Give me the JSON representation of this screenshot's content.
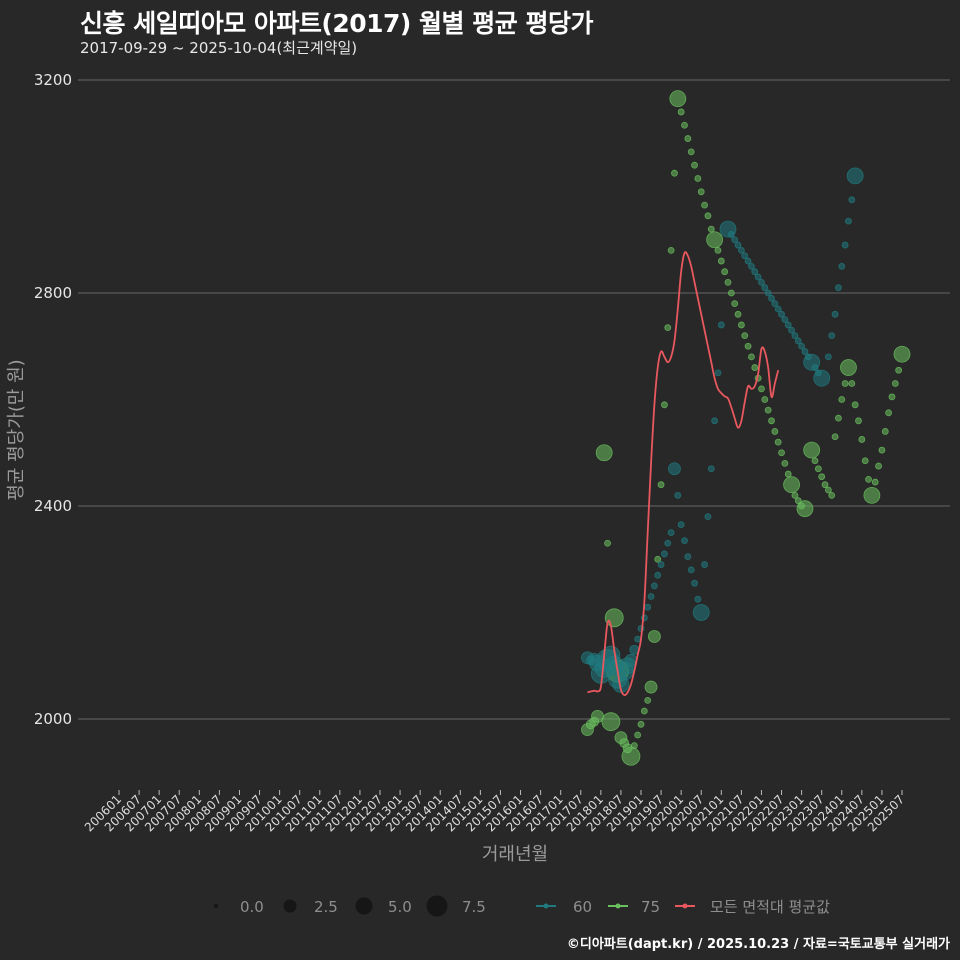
{
  "header": {
    "title": "신흥 세일띠아모 아파트(2017) 월별 평균 평당가",
    "subtitle": "2017-09-29 ~ 2025-10-04(최근계약일)"
  },
  "footer": {
    "credit": "©디아파트(dapt.kr) / 2025.10.23 / 자료=국토교통부 실거래가"
  },
  "colors": {
    "background": "#282828",
    "gridline": "#5a5a5a",
    "area60": "#1f7a80",
    "area75": "#6abf5e",
    "average": "#e8585e"
  },
  "chart_data": {
    "type": "scatter",
    "title": "신흥 세일띠아모 아파트(2017) 월별 평균 평당가",
    "subtitle": "2017-09-29 ~ 2025-10-04(최근계약일)",
    "xlabel": "거래년월",
    "ylabel": "평균 평당가(만 원)",
    "ylim": [
      1860,
      3230
    ],
    "yticks": [
      2000,
      2400,
      2800,
      3200
    ],
    "grid": true,
    "xticks": [
      "200601",
      "200607",
      "200701",
      "200707",
      "200801",
      "200807",
      "200901",
      "200907",
      "201001",
      "201007",
      "201101",
      "201107",
      "201201",
      "201207",
      "201301",
      "201307",
      "201401",
      "201407",
      "201501",
      "201507",
      "201601",
      "201607",
      "201701",
      "201707",
      "201801",
      "201807",
      "201901",
      "201907",
      "202001",
      "202007",
      "202101",
      "202107",
      "202201",
      "202207",
      "202301",
      "202307",
      "202401",
      "202407",
      "202501",
      "202507"
    ],
    "legend": {
      "size_title": "",
      "sizes": [
        {
          "label": "0.0",
          "r": 2
        },
        {
          "label": "2.5",
          "r": 6
        },
        {
          "label": "5.0",
          "r": 8.5
        },
        {
          "label": "7.5",
          "r": 10.5
        }
      ],
      "series": [
        {
          "label": "60",
          "color": "#1f7a80"
        },
        {
          "label": "75",
          "color": "#6abf5e"
        },
        {
          "label": "모든 면적대 평균값",
          "color": "#e8585e"
        }
      ],
      "position": "bottom"
    },
    "series": [
      {
        "name": "60",
        "points": [
          [
            "201709",
            2115,
            3
          ],
          [
            "201710",
            2110,
            2
          ],
          [
            "201711",
            2112,
            3
          ],
          [
            "201712",
            2105,
            4
          ],
          [
            "201801",
            2085,
            6
          ],
          [
            "201802",
            2095,
            5
          ],
          [
            "201803",
            2110,
            7
          ],
          [
            "201804",
            2120,
            5
          ],
          [
            "201805",
            2100,
            6
          ],
          [
            "201806",
            2075,
            5
          ],
          [
            "201807",
            2065,
            4
          ],
          [
            "201808",
            2090,
            5
          ],
          [
            "201809",
            2100,
            4
          ],
          [
            "201810",
            2110,
            3
          ],
          [
            "201811",
            2130,
            2
          ],
          [
            "201812",
            2150,
            1
          ],
          [
            "201901",
            2170,
            1
          ],
          [
            "201902",
            2190,
            1
          ],
          [
            "201903",
            2210,
            1
          ],
          [
            "201904",
            2230,
            1
          ],
          [
            "201905",
            2250,
            1
          ],
          [
            "201906",
            2270,
            1
          ],
          [
            "201907",
            2290,
            1
          ],
          [
            "201908",
            2310,
            1
          ],
          [
            "201909",
            2330,
            1
          ],
          [
            "201910",
            2350,
            1
          ],
          [
            "201911",
            2470,
            3
          ],
          [
            "201912",
            2420,
            1
          ],
          [
            "202001",
            2365,
            1
          ],
          [
            "202002",
            2335,
            1
          ],
          [
            "202003",
            2305,
            1
          ],
          [
            "202004",
            2280,
            1
          ],
          [
            "202005",
            2255,
            1
          ],
          [
            "202006",
            2225,
            1
          ],
          [
            "202007",
            2200,
            4
          ],
          [
            "202008",
            2290,
            1
          ],
          [
            "202009",
            2380,
            1
          ],
          [
            "202010",
            2470,
            1
          ],
          [
            "202011",
            2560,
            1
          ],
          [
            "202012",
            2650,
            1
          ],
          [
            "202101",
            2740,
            1
          ],
          [
            "202103",
            2920,
            4
          ],
          [
            "202104",
            2910,
            1
          ],
          [
            "202105",
            2900,
            1
          ],
          [
            "202106",
            2890,
            1
          ],
          [
            "202107",
            2880,
            1
          ],
          [
            "202108",
            2870,
            1
          ],
          [
            "202109",
            2860,
            1
          ],
          [
            "202110",
            2850,
            1
          ],
          [
            "202111",
            2840,
            1
          ],
          [
            "202112",
            2830,
            1
          ],
          [
            "202201",
            2820,
            1
          ],
          [
            "202202",
            2810,
            1
          ],
          [
            "202203",
            2800,
            1
          ],
          [
            "202204",
            2790,
            1
          ],
          [
            "202205",
            2780,
            1
          ],
          [
            "202206",
            2770,
            1
          ],
          [
            "202207",
            2760,
            1
          ],
          [
            "202208",
            2750,
            1
          ],
          [
            "202209",
            2740,
            1
          ],
          [
            "202210",
            2730,
            1
          ],
          [
            "202211",
            2720,
            1
          ],
          [
            "202212",
            2710,
            1
          ],
          [
            "202301",
            2700,
            1
          ],
          [
            "202302",
            2690,
            1
          ],
          [
            "202303",
            2680,
            1
          ],
          [
            "202304",
            2670,
            4
          ],
          [
            "202305",
            2660,
            1
          ],
          [
            "202306",
            2650,
            1
          ],
          [
            "202307",
            2640,
            4
          ],
          [
            "202309",
            2680,
            1
          ],
          [
            "202310",
            2720,
            1
          ],
          [
            "202311",
            2760,
            1
          ],
          [
            "202312",
            2810,
            1
          ],
          [
            "202401",
            2850,
            1
          ],
          [
            "202402",
            2890,
            1
          ],
          [
            "202403",
            2935,
            1
          ],
          [
            "202404",
            2975,
            1
          ],
          [
            "202405",
            3020,
            4
          ]
        ]
      },
      {
        "name": "75",
        "points": [
          [
            "201709",
            1980,
            3
          ],
          [
            "201710",
            1990,
            2
          ],
          [
            "201711",
            1995,
            2
          ],
          [
            "201712",
            2005,
            3
          ],
          [
            "201802",
            2500,
            4
          ],
          [
            "201803",
            2330,
            1
          ],
          [
            "201804",
            1995,
            5
          ],
          [
            "201805",
            2190,
            5
          ],
          [
            "201806",
            2090,
            7
          ],
          [
            "201807",
            1965,
            3
          ],
          [
            "201808",
            1955,
            2
          ],
          [
            "201809",
            1945,
            2
          ],
          [
            "201810",
            1930,
            5
          ],
          [
            "201811",
            1950,
            1
          ],
          [
            "201812",
            1970,
            1
          ],
          [
            "201901",
            1990,
            1
          ],
          [
            "201902",
            2015,
            1
          ],
          [
            "201903",
            2035,
            1
          ],
          [
            "201904",
            2060,
            3
          ],
          [
            "201905",
            2155,
            3
          ],
          [
            "201906",
            2300,
            1
          ],
          [
            "201907",
            2440,
            1
          ],
          [
            "201908",
            2590,
            1
          ],
          [
            "201909",
            2735,
            1
          ],
          [
            "201910",
            2880,
            1
          ],
          [
            "201911",
            3025,
            1
          ],
          [
            "201912",
            3165,
            4
          ],
          [
            "202001",
            3140,
            1
          ],
          [
            "202002",
            3115,
            1
          ],
          [
            "202003",
            3090,
            1
          ],
          [
            "202004",
            3065,
            1
          ],
          [
            "202005",
            3040,
            1
          ],
          [
            "202006",
            3015,
            1
          ],
          [
            "202007",
            2990,
            1
          ],
          [
            "202008",
            2965,
            1
          ],
          [
            "202009",
            2945,
            1
          ],
          [
            "202010",
            2920,
            1
          ],
          [
            "202011",
            2900,
            4
          ],
          [
            "202012",
            2880,
            1
          ],
          [
            "202101",
            2860,
            1
          ],
          [
            "202102",
            2840,
            1
          ],
          [
            "202103",
            2820,
            1
          ],
          [
            "202104",
            2800,
            1
          ],
          [
            "202105",
            2780,
            1
          ],
          [
            "202106",
            2760,
            1
          ],
          [
            "202107",
            2740,
            1
          ],
          [
            "202108",
            2720,
            1
          ],
          [
            "202109",
            2700,
            1
          ],
          [
            "202110",
            2680,
            1
          ],
          [
            "202111",
            2660,
            1
          ],
          [
            "202112",
            2640,
            1
          ],
          [
            "202201",
            2620,
            1
          ],
          [
            "202202",
            2600,
            1
          ],
          [
            "202203",
            2580,
            1
          ],
          [
            "202204",
            2560,
            1
          ],
          [
            "202205",
            2540,
            1
          ],
          [
            "202206",
            2520,
            1
          ],
          [
            "202207",
            2500,
            1
          ],
          [
            "202208",
            2480,
            1
          ],
          [
            "202209",
            2460,
            1
          ],
          [
            "202210",
            2440,
            4
          ],
          [
            "202211",
            2420,
            1
          ],
          [
            "202212",
            2410,
            1
          ],
          [
            "202301",
            2400,
            1
          ],
          [
            "202302",
            2395,
            4
          ],
          [
            "202304",
            2505,
            4
          ],
          [
            "202305",
            2485,
            1
          ],
          [
            "202306",
            2470,
            1
          ],
          [
            "202307",
            2455,
            1
          ],
          [
            "202308",
            2440,
            1
          ],
          [
            "202309",
            2430,
            1
          ],
          [
            "202310",
            2420,
            1
          ],
          [
            "202311",
            2530,
            1
          ],
          [
            "202312",
            2565,
            1
          ],
          [
            "202401",
            2600,
            1
          ],
          [
            "202402",
            2630,
            1
          ],
          [
            "202403",
            2660,
            4
          ],
          [
            "202404",
            2630,
            1
          ],
          [
            "202405",
            2590,
            1
          ],
          [
            "202406",
            2560,
            1
          ],
          [
            "202407",
            2525,
            1
          ],
          [
            "202408",
            2485,
            1
          ],
          [
            "202409",
            2450,
            1
          ],
          [
            "202410",
            2420,
            4
          ],
          [
            "202411",
            2445,
            1
          ],
          [
            "202412",
            2475,
            1
          ],
          [
            "202501",
            2505,
            1
          ],
          [
            "202502",
            2540,
            1
          ],
          [
            "202503",
            2575,
            1
          ],
          [
            "202504",
            2605,
            1
          ],
          [
            "202505",
            2630,
            1
          ],
          [
            "202506",
            2655,
            1
          ],
          [
            "202507",
            2685,
            4
          ]
        ]
      },
      {
        "name": "모든 면적대 평균값",
        "type": "line",
        "points": [
          [
            "201709",
            2050
          ],
          [
            "201711",
            2053
          ],
          [
            "201712",
            2052
          ],
          [
            "201801",
            2060
          ],
          [
            "201802",
            2120
          ],
          [
            "201803",
            2180
          ],
          [
            "201804",
            2175
          ],
          [
            "201805",
            2130
          ],
          [
            "201806",
            2090
          ],
          [
            "201807",
            2055
          ],
          [
            "201808",
            2045
          ],
          [
            "201809",
            2050
          ],
          [
            "201810",
            2065
          ],
          [
            "201811",
            2090
          ],
          [
            "201812",
            2120
          ],
          [
            "201901",
            2150
          ],
          [
            "201902",
            2220
          ],
          [
            "201903",
            2350
          ],
          [
            "201904",
            2480
          ],
          [
            "201905",
            2590
          ],
          [
            "201906",
            2660
          ],
          [
            "201907",
            2690
          ],
          [
            "201908",
            2680
          ],
          [
            "201909",
            2670
          ],
          [
            "201910",
            2680
          ],
          [
            "201911",
            2710
          ],
          [
            "201912",
            2770
          ],
          [
            "202001",
            2840
          ],
          [
            "202002",
            2875
          ],
          [
            "202003",
            2870
          ],
          [
            "202004",
            2850
          ],
          [
            "202005",
            2820
          ],
          [
            "202006",
            2790
          ],
          [
            "202007",
            2760
          ],
          [
            "202008",
            2730
          ],
          [
            "202009",
            2700
          ],
          [
            "202010",
            2670
          ],
          [
            "202011",
            2640
          ],
          [
            "202012",
            2620
          ],
          [
            "202101",
            2612
          ],
          [
            "202102",
            2606
          ],
          [
            "202103",
            2602
          ],
          [
            "202104",
            2585
          ],
          [
            "202105",
            2565
          ],
          [
            "202106",
            2547
          ],
          [
            "202107",
            2560
          ],
          [
            "202108",
            2595
          ],
          [
            "202109",
            2625
          ],
          [
            "202110",
            2620
          ],
          [
            "202111",
            2625
          ],
          [
            "202112",
            2648
          ],
          [
            "202201",
            2695
          ],
          [
            "202202",
            2690
          ],
          [
            "202203",
            2660
          ],
          [
            "202204",
            2605
          ],
          [
            "202205",
            2630
          ],
          [
            "202206",
            2655
          ]
        ]
      }
    ]
  },
  "axes": {
    "x_title": "거래년월",
    "y_title": "평균 평당가(만 원)",
    "y_ticks": [
      "2000",
      "2400",
      "2800",
      "3200"
    ]
  },
  "legend_labels": {
    "size0": "0.0",
    "size1": "2.5",
    "size2": "5.0",
    "size3": "7.5",
    "s60": "60",
    "s75": "75",
    "savg": "모든 면적대 평균값"
  }
}
